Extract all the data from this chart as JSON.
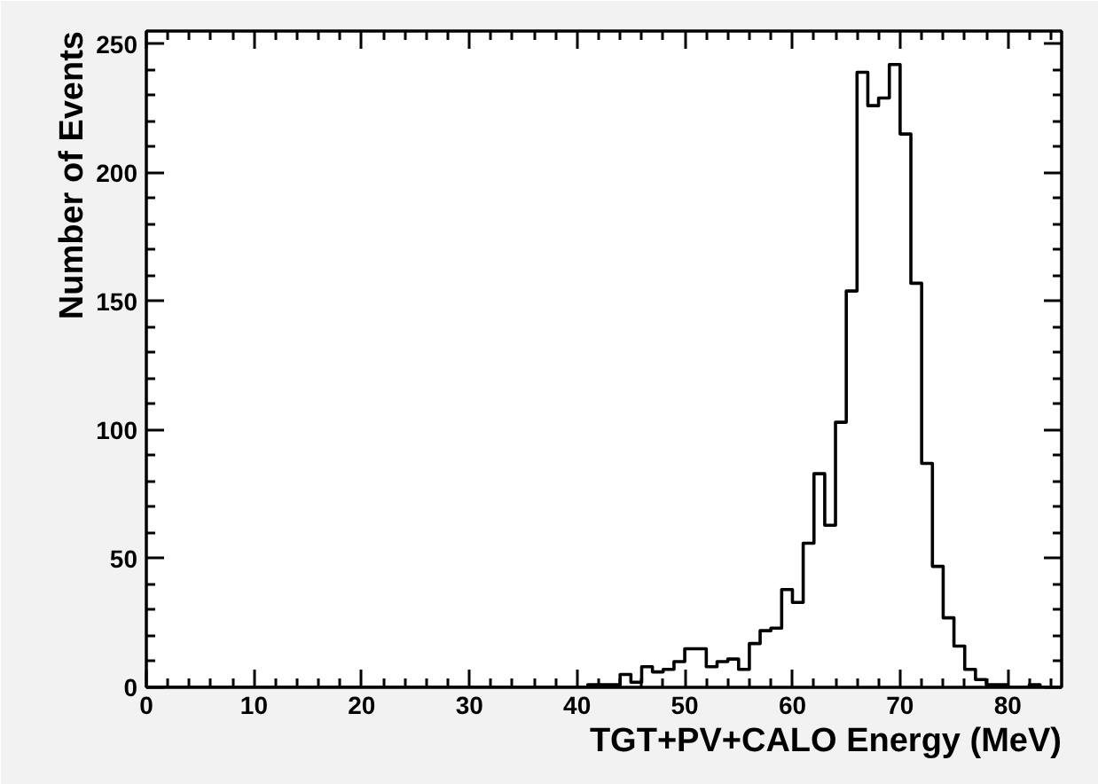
{
  "chart_data": {
    "type": "histogram",
    "xlabel": "TGT+PV+CALO Energy (MeV)",
    "ylabel": "Number of Events",
    "bins": [
      0,
      1,
      2,
      3,
      4,
      5,
      6,
      7,
      8,
      9,
      10,
      11,
      12,
      13,
      14,
      15,
      16,
      17,
      18,
      19,
      20,
      21,
      22,
      23,
      24,
      25,
      26,
      27,
      28,
      29,
      30,
      31,
      32,
      33,
      34,
      35,
      36,
      37,
      38,
      39,
      40,
      41,
      42,
      43,
      44,
      45,
      46,
      47,
      48,
      49,
      50,
      51,
      52,
      53,
      54,
      55,
      56,
      57,
      58,
      59,
      60,
      61,
      62,
      63,
      64,
      65,
      66,
      67,
      68,
      69,
      70,
      71,
      72,
      73,
      74,
      75,
      76,
      77,
      78,
      79,
      80,
      81,
      82,
      83,
      84,
      85
    ],
    "values": [
      0,
      0,
      0,
      0,
      0,
      0,
      0,
      0,
      0,
      0,
      0,
      0,
      0,
      0,
      0,
      0,
      0,
      0,
      0,
      0,
      0,
      0,
      0,
      0,
      0,
      0,
      0,
      0,
      0,
      0,
      0,
      0,
      0,
      0,
      0,
      0,
      0,
      0,
      0,
      0,
      0,
      1,
      1,
      1,
      5,
      2,
      8,
      6,
      7,
      10,
      15,
      15,
      8,
      10,
      11,
      7,
      17,
      22,
      23,
      38,
      33,
      56,
      83,
      63,
      103,
      154,
      239,
      226,
      229,
      242,
      215,
      157,
      87,
      47,
      27,
      16,
      7,
      3,
      1,
      1,
      0,
      0,
      1,
      0,
      0
    ],
    "color": "#000000",
    "xlim": [
      0,
      85
    ],
    "ylim": [
      0,
      255
    ],
    "xticks": [
      0,
      10,
      20,
      30,
      40,
      50,
      60,
      70,
      80
    ],
    "yticks": [
      0,
      50,
      100,
      150,
      200,
      250
    ],
    "grid": false
  }
}
